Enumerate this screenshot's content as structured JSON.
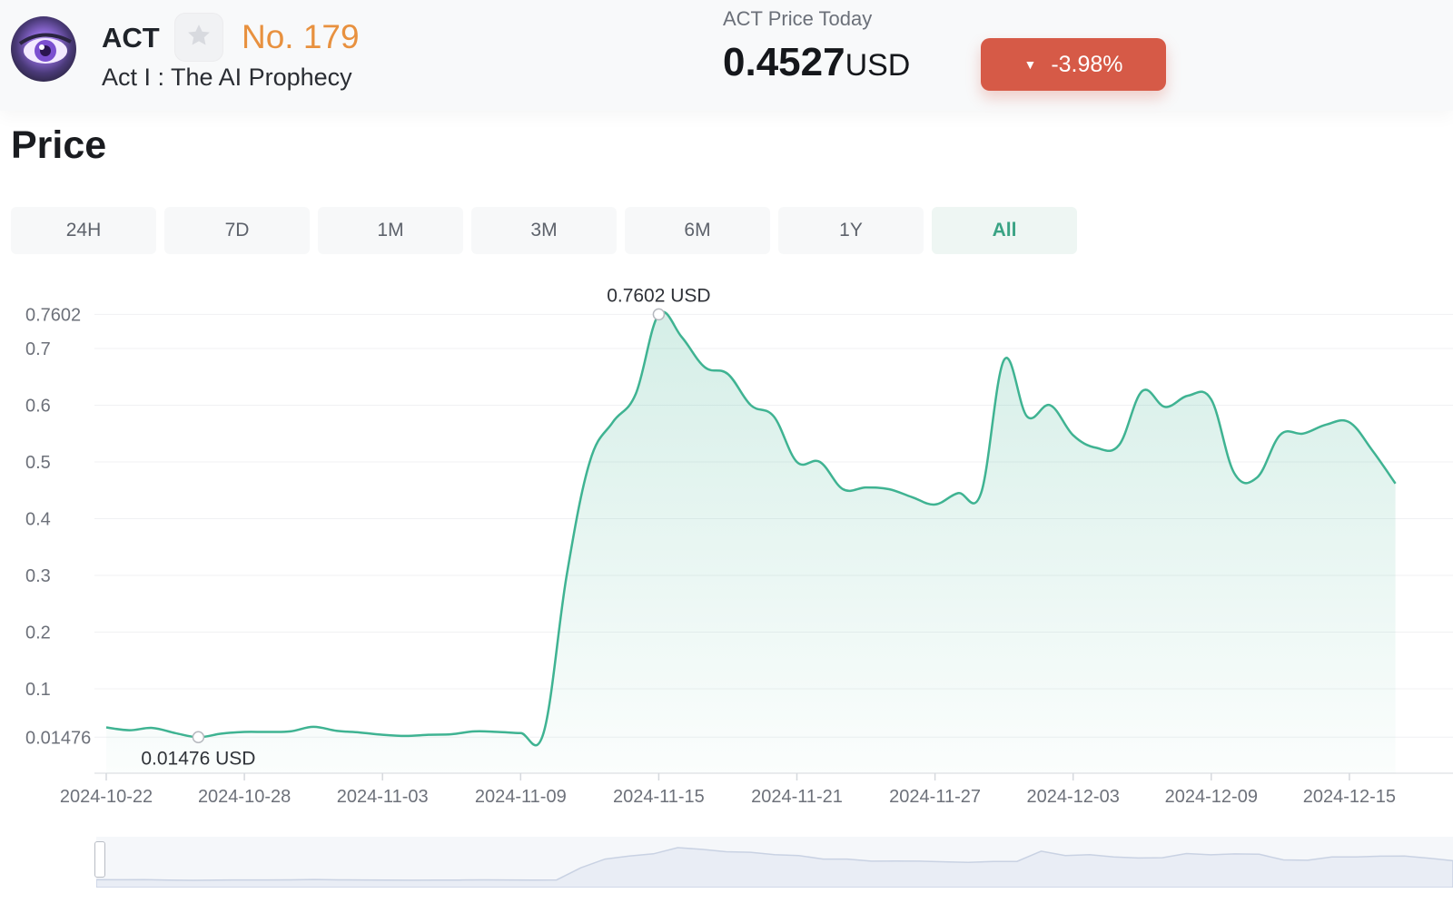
{
  "coin": {
    "symbol": "ACT",
    "rank": "No. 179",
    "name": "Act I : The AI Prophecy"
  },
  "price_today": {
    "label": "ACT Price Today",
    "value": "0.4527",
    "unit": "USD",
    "change": "-3.98%",
    "change_color": "#d65a47"
  },
  "section_title": "Price",
  "tabs": [
    {
      "label": "24H",
      "active": false
    },
    {
      "label": "7D",
      "active": false
    },
    {
      "label": "1M",
      "active": false
    },
    {
      "label": "3M",
      "active": false
    },
    {
      "label": "6M",
      "active": false
    },
    {
      "label": "1Y",
      "active": false
    },
    {
      "label": "All",
      "active": true
    }
  ],
  "colors": {
    "line": "#3fb392",
    "accent": "#3aa384",
    "rank": "#e8913f"
  },
  "chart_data": {
    "type": "area",
    "title": "",
    "xlabel": "",
    "ylabel": "",
    "x_ticks": [
      "2024-10-22",
      "2024-10-28",
      "2024-11-03",
      "2024-11-09",
      "2024-11-15",
      "2024-11-21",
      "2024-11-27",
      "2024-12-03",
      "2024-12-09",
      "2024-12-15"
    ],
    "y_ticks": [
      0.01476,
      0.1,
      0.2,
      0.3,
      0.4,
      0.5,
      0.6,
      0.7,
      0.7602
    ],
    "y_tick_labels": [
      "0.01476",
      "0.1",
      "0.2",
      "0.3",
      "0.4",
      "0.5",
      "0.6",
      "0.7",
      "0.7602"
    ],
    "ylim": [
      0.01476,
      0.7602
    ],
    "xlim": [
      "2024-10-22",
      "2024-12-16"
    ],
    "max": {
      "date": "2024-11-15",
      "value": 0.7602,
      "label": "0.7602 USD"
    },
    "min": {
      "date": "2024-10-26",
      "value": 0.01476,
      "label": "0.01476 USD"
    },
    "series": [
      {
        "points": [
          [
            "2024-10-22",
            0.032
          ],
          [
            "2024-10-23",
            0.027
          ],
          [
            "2024-10-24",
            0.031
          ],
          [
            "2024-10-25",
            0.022
          ],
          [
            "2024-10-26",
            0.01476
          ],
          [
            "2024-10-27",
            0.021
          ],
          [
            "2024-10-28",
            0.024
          ],
          [
            "2024-10-29",
            0.024
          ],
          [
            "2024-10-30",
            0.025
          ],
          [
            "2024-10-31",
            0.033
          ],
          [
            "2024-11-01",
            0.026
          ],
          [
            "2024-11-02",
            0.023
          ],
          [
            "2024-11-03",
            0.019
          ],
          [
            "2024-11-04",
            0.017
          ],
          [
            "2024-11-05",
            0.019
          ],
          [
            "2024-11-06",
            0.02
          ],
          [
            "2024-11-07",
            0.025
          ],
          [
            "2024-11-08",
            0.024
          ],
          [
            "2024-11-09",
            0.022
          ],
          [
            "2024-11-10",
            0.023
          ],
          [
            "2024-11-11",
            0.3
          ],
          [
            "2024-11-12",
            0.5
          ],
          [
            "2024-11-13",
            0.57
          ],
          [
            "2024-11-14",
            0.62
          ],
          [
            "2024-11-15",
            0.7602
          ],
          [
            "2024-11-16",
            0.72
          ],
          [
            "2024-11-17",
            0.667
          ],
          [
            "2024-11-18",
            0.655
          ],
          [
            "2024-11-19",
            0.6
          ],
          [
            "2024-11-20",
            0.58
          ],
          [
            "2024-11-21",
            0.5
          ],
          [
            "2024-11-22",
            0.5
          ],
          [
            "2024-11-23",
            0.452
          ],
          [
            "2024-11-24",
            0.455
          ],
          [
            "2024-11-25",
            0.452
          ],
          [
            "2024-11-26",
            0.438
          ],
          [
            "2024-11-27",
            0.425
          ],
          [
            "2024-11-28",
            0.445
          ],
          [
            "2024-11-29",
            0.445
          ],
          [
            "2024-11-30",
            0.68
          ],
          [
            "2024-12-01",
            0.58
          ],
          [
            "2024-12-02",
            0.6
          ],
          [
            "2024-12-03",
            0.547
          ],
          [
            "2024-12-04",
            0.525
          ],
          [
            "2024-12-05",
            0.53
          ],
          [
            "2024-12-06",
            0.625
          ],
          [
            "2024-12-07",
            0.597
          ],
          [
            "2024-12-08",
            0.617
          ],
          [
            "2024-12-09",
            0.61
          ],
          [
            "2024-12-10",
            0.48
          ],
          [
            "2024-12-11",
            0.473
          ],
          [
            "2024-12-12",
            0.548
          ],
          [
            "2024-12-13",
            0.55
          ],
          [
            "2024-12-14",
            0.566
          ],
          [
            "2024-12-15",
            0.57
          ],
          [
            "2024-12-16",
            0.52
          ],
          [
            "2024-12-17",
            0.462
          ]
        ]
      }
    ],
    "grid": true,
    "legend": "none"
  }
}
